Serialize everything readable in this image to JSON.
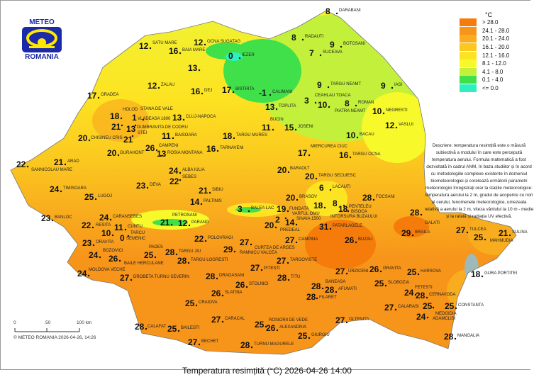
{
  "logo": {
    "top_text": "METEO",
    "bottom_text": "ROMANIA"
  },
  "title": "Temperatura resimțită (°C) 2026-04-26 14:00",
  "copyright": "© METEO ROMANIA 2026-04-26, 14:26",
  "scale": {
    "labels": [
      "0",
      "50",
      "100 km"
    ]
  },
  "legend": {
    "unit": "°C",
    "items": [
      {
        "label": "> 28.0",
        "color": "#f57c0a"
      },
      {
        "label": "24.1 - 28.0",
        "color": "#f7941a"
      },
      {
        "label": "20.1 - 24.0",
        "color": "#f9ad1e"
      },
      {
        "label": "16.1 - 20.0",
        "color": "#fbc81f"
      },
      {
        "label": "12.1 - 16.0",
        "color": "#fde422"
      },
      {
        "label": "8.1 - 12.0",
        "color": "#f7f92a"
      },
      {
        "label": "4.1 - 8.0",
        "color": "#c3f03a"
      },
      {
        "label": "0.1 - 4.0",
        "color": "#3fe04a"
      },
      {
        "label": "<= 0.0",
        "color": "#2cf0c0"
      }
    ]
  },
  "description": "Descriere: temperatura resimțită este o măsură subiectivă a modului în care este percepută temperatura aerului. Formula matematică a fost dezvoltată în cadrul ANM, în baza studiilor și în acord cu metodologiile complexe existente în domeniul biometeorologiei și corelează următorii parametri meteorologici înregistrați orar la stațiile meteorologice: temperatura aerului la 2 m, gradul de acoperire cu nori al cerului, fenomenele meteorologice, umezeala relativă a aerului la 2 m, viteza vântului la 10 m - medie și la rafală și radiația UV efectivă.",
  "stations": [
    {
      "name": "SATU MARE",
      "value": "12"
    },
    {
      "name": "BAIA MARE",
      "value": "16"
    },
    {
      "name": "OCNA SUGATAG",
      "value": "12"
    },
    {
      "name": "",
      "value": "13"
    },
    {
      "name": "ZALAU",
      "value": "12"
    },
    {
      "name": "DEJ",
      "value": "16"
    },
    {
      "name": "ORADEA",
      "value": "17"
    },
    {
      "name": "HOLOD",
      "value": "18"
    },
    {
      "name": "VLADEASA 1800",
      "value": "1"
    },
    {
      "name": "DUMBRAVITA DE CODRU",
      "value": "21"
    },
    {
      "name": "STANA DE VALE",
      "value": "13"
    },
    {
      "name": "CLUJ-NAPOCA",
      "value": "13"
    },
    {
      "name": "CHISINEU CRIS",
      "value": "20"
    },
    {
      "name": "STEI",
      "value": "21"
    },
    {
      "name": "BAISOARA",
      "value": "11"
    },
    {
      "name": "GURAHONT",
      "value": "20"
    },
    {
      "name": "CAMPENI",
      "value": "26"
    },
    {
      "name": "ROSIA MONTANA",
      "value": "13"
    },
    {
      "name": "TARNAVENI",
      "value": "16"
    },
    {
      "name": "SANNICOLAU MARE",
      "value": "22"
    },
    {
      "name": "ARAD",
      "value": "21"
    },
    {
      "name": "ALBA IULIA",
      "value": "24"
    },
    {
      "name": "SEBES",
      "value": "22"
    },
    {
      "name": "DARABANI",
      "value": "8"
    },
    {
      "name": "RADAUTI",
      "value": "8"
    },
    {
      "name": "BOTOSANI",
      "value": "9"
    },
    {
      "name": "IEZER",
      "value": "0"
    },
    {
      "name": "SUCEAVA",
      "value": "7"
    },
    {
      "name": "TARGU NEAMT",
      "value": "9"
    },
    {
      "name": "IASI",
      "value": "9"
    },
    {
      "name": "BISTRITA",
      "value": "17"
    },
    {
      "name": "CALIMANI",
      "value": "-1"
    },
    {
      "name": "CEAHLAU TOACA",
      "value": "3"
    },
    {
      "name": "TOPLITA",
      "value": "13"
    },
    {
      "name": "PIATRA NEAMT",
      "value": "10"
    },
    {
      "name": "ROMAN",
      "value": "8"
    },
    {
      "name": "NEGRESTI",
      "value": "10"
    },
    {
      "name": "BUCIN",
      "value": "11"
    },
    {
      "name": "JOSENI",
      "value": "15"
    },
    {
      "name": "VASLUI",
      "value": "12"
    },
    {
      "name": "TARGU MURES",
      "value": "18"
    },
    {
      "name": "BACAU",
      "value": "10"
    },
    {
      "name": "MIERCUREA CIUC",
      "value": "17"
    },
    {
      "name": "TARGU OCNA",
      "value": "16"
    },
    {
      "name": "BARAOLT",
      "value": "20"
    },
    {
      "name": "TARGU SECUIESC",
      "value": "20"
    },
    {
      "name": "TIMISOARA",
      "value": "24"
    },
    {
      "name": "DEVA",
      "value": "23"
    },
    {
      "name": "SIBIU",
      "value": "21"
    },
    {
      "name": "LUGOJ",
      "value": "25"
    },
    {
      "name": "PALTINIS",
      "value": "14"
    },
    {
      "name": "BANLOC",
      "value": "23"
    },
    {
      "name": "CARANSEBES",
      "value": "24"
    },
    {
      "name": "PETROSANI",
      "value": "21"
    },
    {
      "name": "PARANG",
      "value": "12"
    },
    {
      "name": "RESITA",
      "value": "22"
    },
    {
      "name": "CUNTU",
      "value": "11"
    },
    {
      "name": "TARCU",
      "value": "0"
    },
    {
      "name": "SEMENIC",
      "value": "10"
    },
    {
      "name": "POLOVRAGI",
      "value": "22"
    },
    {
      "name": "ORAVITA",
      "value": "23"
    },
    {
      "name": "BOZOVICI",
      "value": "24"
    },
    {
      "name": "BAILE HERCULANE",
      "value": "26"
    },
    {
      "name": "PADES",
      "value": "25"
    },
    {
      "name": "TARGU JIU",
      "value": "28"
    },
    {
      "name": "TARGU LOGRESTI",
      "value": "28"
    },
    {
      "name": "MOLDOVA VECHE",
      "value": "24"
    },
    {
      "name": "DROBETA TURNU SEVERIN",
      "value": "27"
    },
    {
      "name": "DRAGASANI",
      "value": "28"
    },
    {
      "name": "SLATINA",
      "value": "26"
    },
    {
      "name": "CRAIOVA",
      "value": "25"
    },
    {
      "name": "CARACAL",
      "value": "27"
    },
    {
      "name": "CALAFAT",
      "value": "28"
    },
    {
      "name": "BAILESTI",
      "value": "25"
    },
    {
      "name": "BECHET",
      "value": "27"
    },
    {
      "name": "LACAUTI",
      "value": "6"
    },
    {
      "name": "FOCSANI",
      "value": "28"
    },
    {
      "name": "BRASOV",
      "value": "20"
    },
    {
      "name": "BALEA LAC",
      "value": "3"
    },
    {
      "name": "VARFUL OMU",
      "value": "19"
    },
    {
      "name": "INTORSURA BUZAULUI",
      "value": "18"
    },
    {
      "name": "PENTELEU",
      "value": "8"
    },
    {
      "name": "BISOCA",
      "value": "18"
    },
    {
      "name": "FUNDATA",
      "value": "2"
    },
    {
      "name": "SINAIA 1500",
      "value": "14"
    },
    {
      "name": "PREDEAL",
      "value": "20"
    },
    {
      "name": "PATARLAGELE",
      "value": "31"
    },
    {
      "name": "CURTEA DE ARGES",
      "value": "27"
    },
    {
      "name": "CAMPINA",
      "value": "27"
    },
    {
      "name": "BUZAU",
      "value": "26"
    },
    {
      "name": "RAMNICU VALCEA",
      "value": "29"
    },
    {
      "name": "PITESTI",
      "value": "27"
    },
    {
      "name": "TARGOVISTE",
      "value": "27"
    },
    {
      "name": "URZICENI",
      "value": "27"
    },
    {
      "name": "GRAVITA",
      "value": "26"
    },
    {
      "name": "TITU",
      "value": "28"
    },
    {
      "name": "BANEASA",
      "value": "28"
    },
    {
      "name": "AFUMATI",
      "value": "28"
    },
    {
      "name": "SLOBOZIA",
      "value": "25"
    },
    {
      "name": "FILARET",
      "value": "28"
    },
    {
      "name": "CALARASI",
      "value": "27"
    },
    {
      "name": "ROSIORII DE VEDE",
      "value": "25"
    },
    {
      "name": "ALEXANDRIA",
      "value": "26"
    },
    {
      "name": "OLTENITA",
      "value": "27"
    },
    {
      "name": "GIURGIU",
      "value": "25"
    },
    {
      "name": "TURNU MAGURELE",
      "value": "28"
    },
    {
      "name": "STOLNICI",
      "value": "26"
    },
    {
      "name": "GALATI",
      "value": "28"
    },
    {
      "name": "BRAILA",
      "value": "29"
    },
    {
      "name": "TULCEA",
      "value": "27"
    },
    {
      "name": "MAHMUDIA",
      "value": "25"
    },
    {
      "name": "SULINA",
      "value": "21"
    },
    {
      "name": "HARSOVA",
      "value": "25"
    },
    {
      "name": "GURA PORTITEI",
      "value": "18"
    },
    {
      "name": "FETESTI",
      "value": "24"
    },
    {
      "name": "CERNAVODA",
      "value": "28"
    },
    {
      "name": "MEDGIDIA",
      "value": "25"
    },
    {
      "name": "CONSTANTA",
      "value": "25"
    },
    {
      "name": "ADAMCLISI",
      "value": "24"
    },
    {
      "name": "MANGALIA",
      "value": "28"
    }
  ]
}
